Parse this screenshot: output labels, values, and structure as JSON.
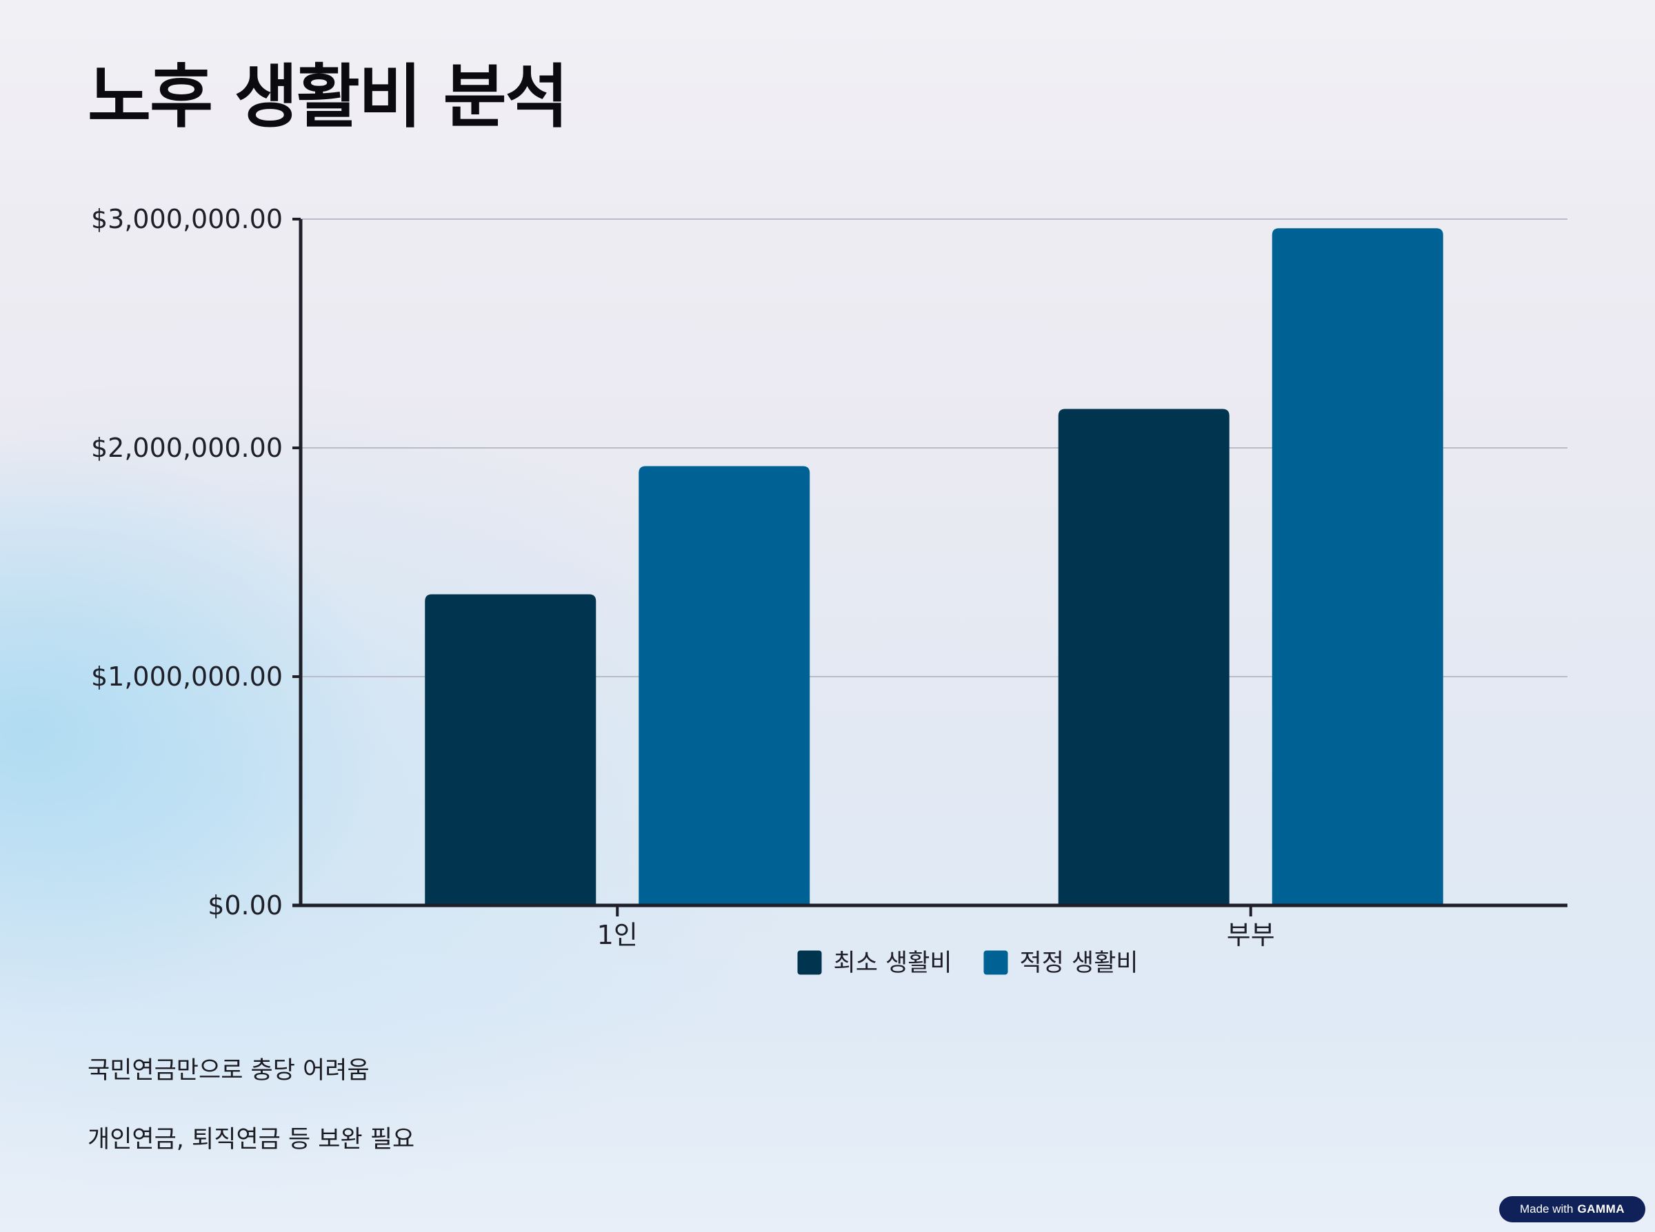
{
  "page": {
    "title": "노후 생활비 분석"
  },
  "notes": [
    "국민연금만으로 충당 어려움",
    "개인연금, 퇴직연금 등 보완 필요"
  ],
  "badge": {
    "prefix": "Made with",
    "brand": "GAMMA"
  },
  "chart_data": {
    "type": "bar",
    "title": "",
    "xlabel": "",
    "ylabel": "",
    "categories": [
      "1인",
      "부부"
    ],
    "series": [
      {
        "name": "최소 생활비",
        "values": [
          1360000,
          2170000
        ],
        "color": "#00344f"
      },
      {
        "name": "적정 생활비",
        "values": [
          1920000,
          2960000
        ],
        "color": "#006294"
      }
    ],
    "ylim": [
      0,
      3000000
    ],
    "y_ticks": [
      0,
      1000000,
      2000000,
      3000000
    ],
    "y_tick_labels": [
      "$0.00",
      "$1,000,000.00",
      "$2,000,000.00",
      "$3,000,000.00"
    ],
    "grid": true,
    "legend_position": "bottom-center"
  }
}
